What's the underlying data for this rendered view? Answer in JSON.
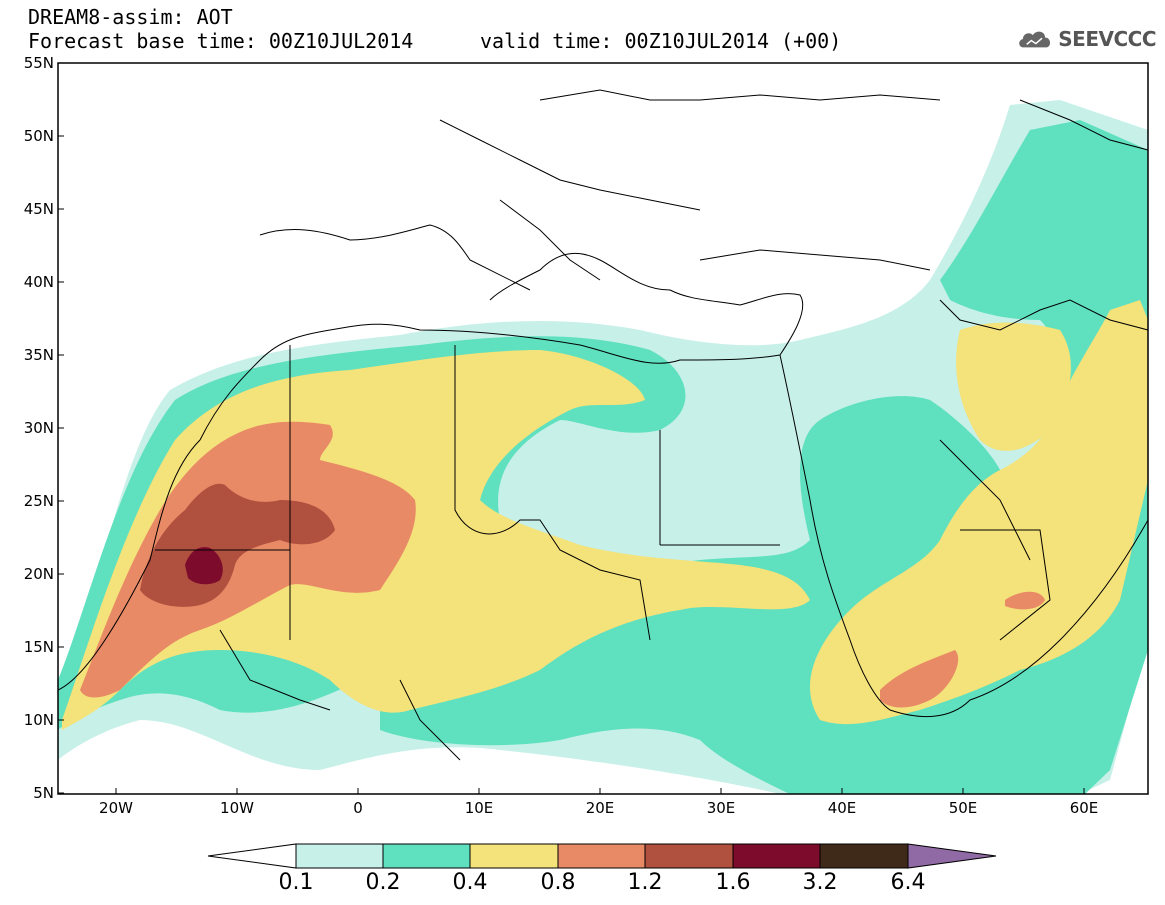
{
  "header": {
    "title": "DREAM8-assim: AOT",
    "base_time": "Forecast base time: 00Z10JUL2014",
    "valid_time": "valid time: 00Z10JUL2014 (+00)",
    "logo_text": "SEEVCCC",
    "logo_icon": "cloud-icon"
  },
  "map": {
    "lat_range": [
      5,
      55
    ],
    "lon_range": [
      -25,
      65
    ],
    "y_ticks": [
      "55N",
      "50N",
      "45N",
      "40N",
      "35N",
      "30N",
      "25N",
      "20N",
      "15N",
      "10N",
      "5N"
    ],
    "x_ticks": [
      "20W",
      "10W",
      "0",
      "10E",
      "20E",
      "30E",
      "40E",
      "50E",
      "60E"
    ]
  },
  "colorbar": {
    "labels": [
      "0.1",
      "0.2",
      "0.4",
      "0.8",
      "1.2",
      "1.6",
      "3.2",
      "6.4"
    ],
    "colors": [
      "#ffffff",
      "#c6f0e8",
      "#5fe0bf",
      "#f4e27a",
      "#e98a66",
      "#b0503f",
      "#7c0b2c",
      "#3f2a1a",
      "#8f6aa5"
    ]
  }
}
